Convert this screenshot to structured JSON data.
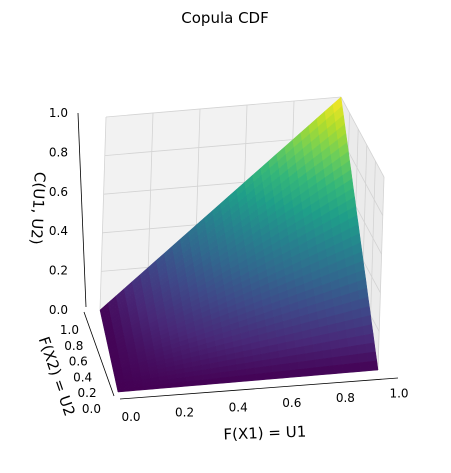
{
  "chart_data": {
    "type": "surface3d",
    "title": "Copula CDF",
    "function": "C(u1,u2) = u1 * u2",
    "xlabel": "F(X1) = U1",
    "ylabel": "F(X2) = U2",
    "zlabel": "C(U1, U2)",
    "x_ticks": [
      "0.0",
      "0.2",
      "0.4",
      "0.6",
      "0.8",
      "1.0"
    ],
    "y_ticks": [
      "0.0",
      "0.2",
      "0.4",
      "0.6",
      "0.8",
      "1.0"
    ],
    "z_ticks": [
      "0.0",
      "0.2",
      "0.4",
      "0.6",
      "0.8",
      "1.0"
    ],
    "xlim": [
      0,
      1
    ],
    "ylim": [
      0,
      1
    ],
    "zlim": [
      0,
      1
    ],
    "grid": true,
    "colormap": "viridis",
    "colormap_stops": [
      "#440154",
      "#482878",
      "#3e4989",
      "#31688e",
      "#26828e",
      "#1f9e89",
      "#35b779",
      "#6ece58",
      "#b5de2b",
      "#fde725"
    ],
    "pane_color": "#f2f2f2",
    "grid_color": "#d3d3d3"
  }
}
